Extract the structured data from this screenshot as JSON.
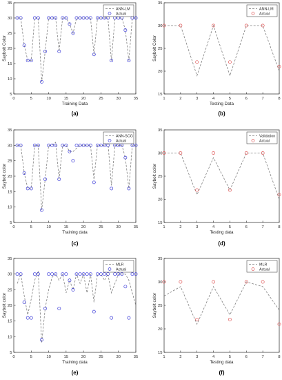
{
  "chart_data": [
    {
      "type": "scatter",
      "panel_label": "(a)",
      "xlabel": "Training Data",
      "ylabel": "Saybolt Color",
      "xlim": [
        0,
        35
      ],
      "ylim": [
        5,
        35
      ],
      "xticks": [
        0,
        5,
        10,
        15,
        20,
        25,
        30,
        35
      ],
      "yticks": [
        5,
        10,
        15,
        20,
        25,
        30,
        35
      ],
      "legend_position": "top-right",
      "series": [
        {
          "name": "ANN-LM",
          "style": "dashed-line",
          "color": "#7f7f7f",
          "x": [
            1,
            2,
            3,
            4,
            5,
            6,
            7,
            8,
            9,
            10,
            11,
            12,
            13,
            14,
            15,
            16,
            17,
            18,
            19,
            20,
            21,
            22,
            23,
            24,
            25,
            26,
            27,
            28,
            29,
            30,
            31,
            32,
            33,
            34,
            35
          ],
          "y": [
            30,
            30,
            21,
            16,
            16,
            30,
            30,
            9,
            19,
            30,
            30,
            30,
            19,
            30,
            30,
            28,
            25,
            30,
            30,
            30,
            30,
            30,
            18,
            30,
            30,
            30,
            30,
            16,
            30,
            30,
            30,
            26,
            16,
            30,
            30
          ]
        },
        {
          "name": "Actual",
          "style": "circle-marker",
          "color": "#3b3bd9",
          "x": [
            1,
            2,
            3,
            4,
            5,
            6,
            7,
            8,
            9,
            10,
            11,
            12,
            13,
            14,
            15,
            16,
            17,
            18,
            19,
            20,
            21,
            22,
            23,
            24,
            25,
            26,
            27,
            28,
            29,
            30,
            31,
            32,
            33,
            34,
            35
          ],
          "y": [
            30,
            30,
            21,
            16,
            16,
            30,
            30,
            9,
            19,
            30,
            30,
            30,
            19,
            30,
            30,
            28,
            25,
            30,
            30,
            30,
            30,
            30,
            18,
            30,
            30,
            30,
            30,
            16,
            30,
            30,
            30,
            26,
            16,
            30,
            30
          ]
        }
      ]
    },
    {
      "type": "line",
      "panel_label": "(b)",
      "xlabel": "Testing Data",
      "ylabel": "Saybolt Color",
      "xlim": [
        1,
        8
      ],
      "ylim": [
        15,
        35
      ],
      "xticks": [
        1,
        2,
        3,
        4,
        5,
        6,
        7,
        8
      ],
      "yticks": [
        15,
        20,
        25,
        30,
        35
      ],
      "legend_position": "top-right",
      "series": [
        {
          "name": "ANN-LM",
          "style": "dashed-line",
          "color": "#7f7f7f",
          "x": [
            1,
            2,
            3,
            4,
            5,
            6,
            7,
            8
          ],
          "y": [
            30,
            30,
            19,
            30,
            19,
            30,
            30,
            20
          ]
        },
        {
          "name": "Actual",
          "style": "circle-marker",
          "color": "#e05a5a",
          "x": [
            1,
            2,
            3,
            4,
            5,
            6,
            7,
            8
          ],
          "y": [
            30,
            30,
            22,
            30,
            22,
            30,
            30,
            21
          ]
        }
      ]
    },
    {
      "type": "scatter",
      "panel_label": "(c)",
      "xlabel": "Training data",
      "ylabel": "Saybolt color",
      "xlim": [
        0,
        35
      ],
      "ylim": [
        5,
        35
      ],
      "xticks": [
        0,
        5,
        10,
        15,
        20,
        25,
        30,
        35
      ],
      "yticks": [
        5,
        10,
        15,
        20,
        25,
        30,
        35
      ],
      "legend_position": "top-right",
      "series": [
        {
          "name": "ANN-SCG",
          "style": "dashed-line",
          "color": "#7f7f7f",
          "x": [
            1,
            2,
            3,
            4,
            5,
            6,
            7,
            8,
            9,
            10,
            11,
            12,
            13,
            14,
            15,
            16,
            17,
            18,
            19,
            20,
            21,
            22,
            23,
            24,
            25,
            26,
            27,
            28,
            29,
            30,
            31,
            32,
            33,
            34,
            35
          ],
          "y": [
            30,
            30,
            21,
            16,
            16,
            30,
            30,
            9,
            19,
            30,
            30,
            31,
            19,
            30,
            30,
            28,
            28,
            29,
            30,
            30,
            30,
            30,
            19,
            30,
            30,
            30,
            31,
            17,
            30,
            30,
            30,
            26,
            16,
            30,
            30
          ]
        },
        {
          "name": "Actual",
          "style": "circle-marker",
          "color": "#3b3bd9",
          "x": [
            1,
            2,
            3,
            4,
            5,
            6,
            7,
            8,
            9,
            10,
            11,
            12,
            13,
            14,
            15,
            16,
            17,
            18,
            19,
            20,
            21,
            22,
            23,
            24,
            25,
            26,
            27,
            28,
            29,
            30,
            31,
            32,
            33,
            34,
            35
          ],
          "y": [
            30,
            30,
            21,
            16,
            16,
            30,
            30,
            9,
            19,
            30,
            30,
            30,
            19,
            30,
            30,
            28,
            25,
            30,
            30,
            30,
            30,
            30,
            18,
            30,
            30,
            30,
            30,
            16,
            30,
            30,
            30,
            26,
            16,
            30,
            30
          ]
        }
      ]
    },
    {
      "type": "line",
      "panel_label": "(d)",
      "xlabel": "Testing data",
      "ylabel": "Saybolt color",
      "xlim": [
        1,
        8
      ],
      "ylim": [
        15,
        35
      ],
      "xticks": [
        1,
        2,
        3,
        4,
        5,
        6,
        7,
        8
      ],
      "yticks": [
        15,
        20,
        25,
        30,
        35
      ],
      "legend_position": "top-right",
      "series": [
        {
          "name": "Validation",
          "style": "dashed-line",
          "color": "#7f7f7f",
          "x": [
            1,
            2,
            3,
            4,
            5,
            6,
            7,
            8
          ],
          "y": [
            30,
            30,
            21,
            29,
            22,
            30,
            30,
            20
          ]
        },
        {
          "name": "Actual",
          "style": "circle-marker",
          "color": "#e05a5a",
          "x": [
            1,
            2,
            3,
            4,
            5,
            6,
            7,
            8
          ],
          "y": [
            30,
            30,
            22,
            30,
            22,
            30,
            30,
            21
          ]
        }
      ]
    },
    {
      "type": "scatter",
      "panel_label": "(e)",
      "xlabel": "Training data",
      "ylabel": "Saybolt color",
      "xlim": [
        0,
        35
      ],
      "ylim": [
        5,
        35
      ],
      "xticks": [
        0,
        5,
        10,
        15,
        20,
        25,
        30,
        35
      ],
      "yticks": [
        5,
        10,
        15,
        20,
        25,
        30,
        35
      ],
      "legend_position": "top-right",
      "series": [
        {
          "name": "MLR",
          "style": "dashed-line",
          "color": "#7f7f7f",
          "x": [
            1,
            2,
            3,
            4,
            5,
            6,
            7,
            8,
            9,
            10,
            11,
            12,
            13,
            14,
            15,
            16,
            17,
            18,
            19,
            20,
            21,
            22,
            23,
            24,
            25,
            26,
            27,
            28,
            29,
            30,
            31,
            32,
            33,
            34,
            35
          ],
          "y": [
            27,
            30,
            23,
            17,
            22,
            28,
            31,
            8,
            19,
            25,
            29,
            30,
            28,
            30,
            24,
            28,
            25,
            30,
            27,
            30,
            24,
            30,
            21,
            30,
            30,
            28,
            30,
            24,
            27,
            30,
            30,
            30,
            28,
            24,
            20
          ]
        },
        {
          "name": "Actual",
          "style": "circle-marker",
          "color": "#3b3bd9",
          "x": [
            1,
            2,
            3,
            4,
            5,
            6,
            7,
            8,
            9,
            10,
            11,
            12,
            13,
            14,
            15,
            16,
            17,
            18,
            19,
            20,
            21,
            22,
            23,
            24,
            25,
            26,
            27,
            28,
            29,
            30,
            31,
            32,
            33,
            34,
            35
          ],
          "y": [
            30,
            30,
            21,
            16,
            16,
            30,
            30,
            9,
            19,
            30,
            30,
            30,
            19,
            30,
            30,
            28,
            25,
            30,
            30,
            30,
            30,
            30,
            18,
            30,
            30,
            30,
            30,
            16,
            30,
            30,
            30,
            26,
            16,
            30,
            30
          ]
        }
      ]
    },
    {
      "type": "line",
      "panel_label": "(f)",
      "xlabel": "Testing data",
      "ylabel": "Saybolt color",
      "xlim": [
        1,
        8
      ],
      "ylim": [
        15,
        35
      ],
      "xticks": [
        1,
        2,
        3,
        4,
        5,
        6,
        7,
        8
      ],
      "yticks": [
        15,
        20,
        25,
        30,
        35
      ],
      "legend_position": "top-right",
      "series": [
        {
          "name": "MLR",
          "style": "dashed-line",
          "color": "#7f7f7f",
          "x": [
            1,
            2,
            3,
            4,
            5,
            6,
            7,
            8
          ],
          "y": [
            27,
            29,
            21,
            29,
            23,
            30,
            29,
            24
          ]
        },
        {
          "name": "Actual",
          "style": "circle-marker",
          "color": "#e05a5a",
          "x": [
            1,
            2,
            3,
            4,
            5,
            6,
            7,
            8
          ],
          "y": [
            30,
            30,
            22,
            30,
            22,
            30,
            30,
            21
          ]
        }
      ]
    }
  ]
}
